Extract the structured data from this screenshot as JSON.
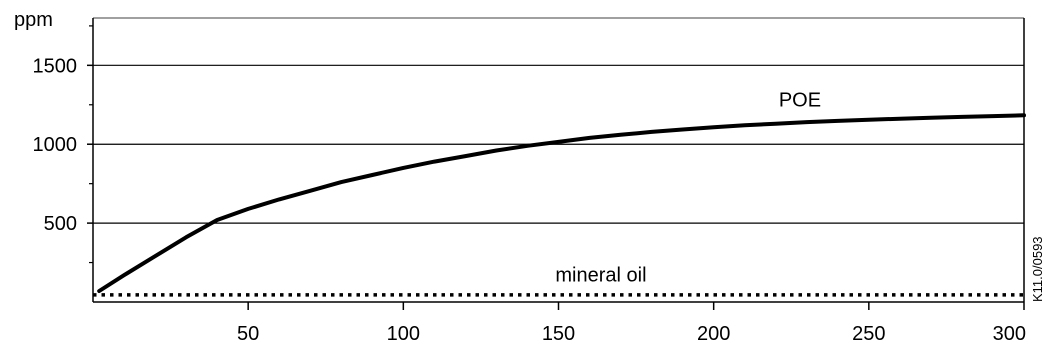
{
  "chart_data": {
    "type": "line",
    "title": "",
    "xlabel": "",
    "ylabel": "ppm",
    "xlim": [
      0,
      300
    ],
    "ylim": [
      0,
      1800
    ],
    "x_ticks": [
      50,
      100,
      150,
      200,
      250,
      300
    ],
    "y_ticks": [
      500,
      1000,
      1500
    ],
    "y_minor_ticks": [
      250,
      750,
      1250,
      1750
    ],
    "gridlines_y": [
      500,
      1000,
      1500
    ],
    "series": [
      {
        "name": "POE",
        "style": "solid",
        "points": [
          [
            2,
            70
          ],
          [
            10,
            170
          ],
          [
            20,
            290
          ],
          [
            30,
            410
          ],
          [
            40,
            520
          ],
          [
            50,
            590
          ],
          [
            60,
            650
          ],
          [
            70,
            705
          ],
          [
            80,
            760
          ],
          [
            90,
            805
          ],
          [
            100,
            850
          ],
          [
            110,
            890
          ],
          [
            120,
            925
          ],
          [
            130,
            960
          ],
          [
            140,
            990
          ],
          [
            150,
            1015
          ],
          [
            160,
            1040
          ],
          [
            170,
            1060
          ],
          [
            180,
            1078
          ],
          [
            190,
            1093
          ],
          [
            200,
            1108
          ],
          [
            210,
            1120
          ],
          [
            220,
            1130
          ],
          [
            230,
            1140
          ],
          [
            240,
            1148
          ],
          [
            250,
            1155
          ],
          [
            260,
            1162
          ],
          [
            270,
            1168
          ],
          [
            280,
            1173
          ],
          [
            290,
            1178
          ],
          [
            300,
            1183
          ]
        ]
      },
      {
        "name": "mineral oil",
        "style": "dotted",
        "points": [
          [
            0,
            45
          ],
          [
            300,
            45
          ]
        ]
      }
    ],
    "annotations": [
      {
        "text": "POE",
        "x": 221,
        "y": 1240
      },
      {
        "text": "mineral oil",
        "x": 149,
        "y": 130
      }
    ],
    "reference_code": "K11.0/0593"
  }
}
